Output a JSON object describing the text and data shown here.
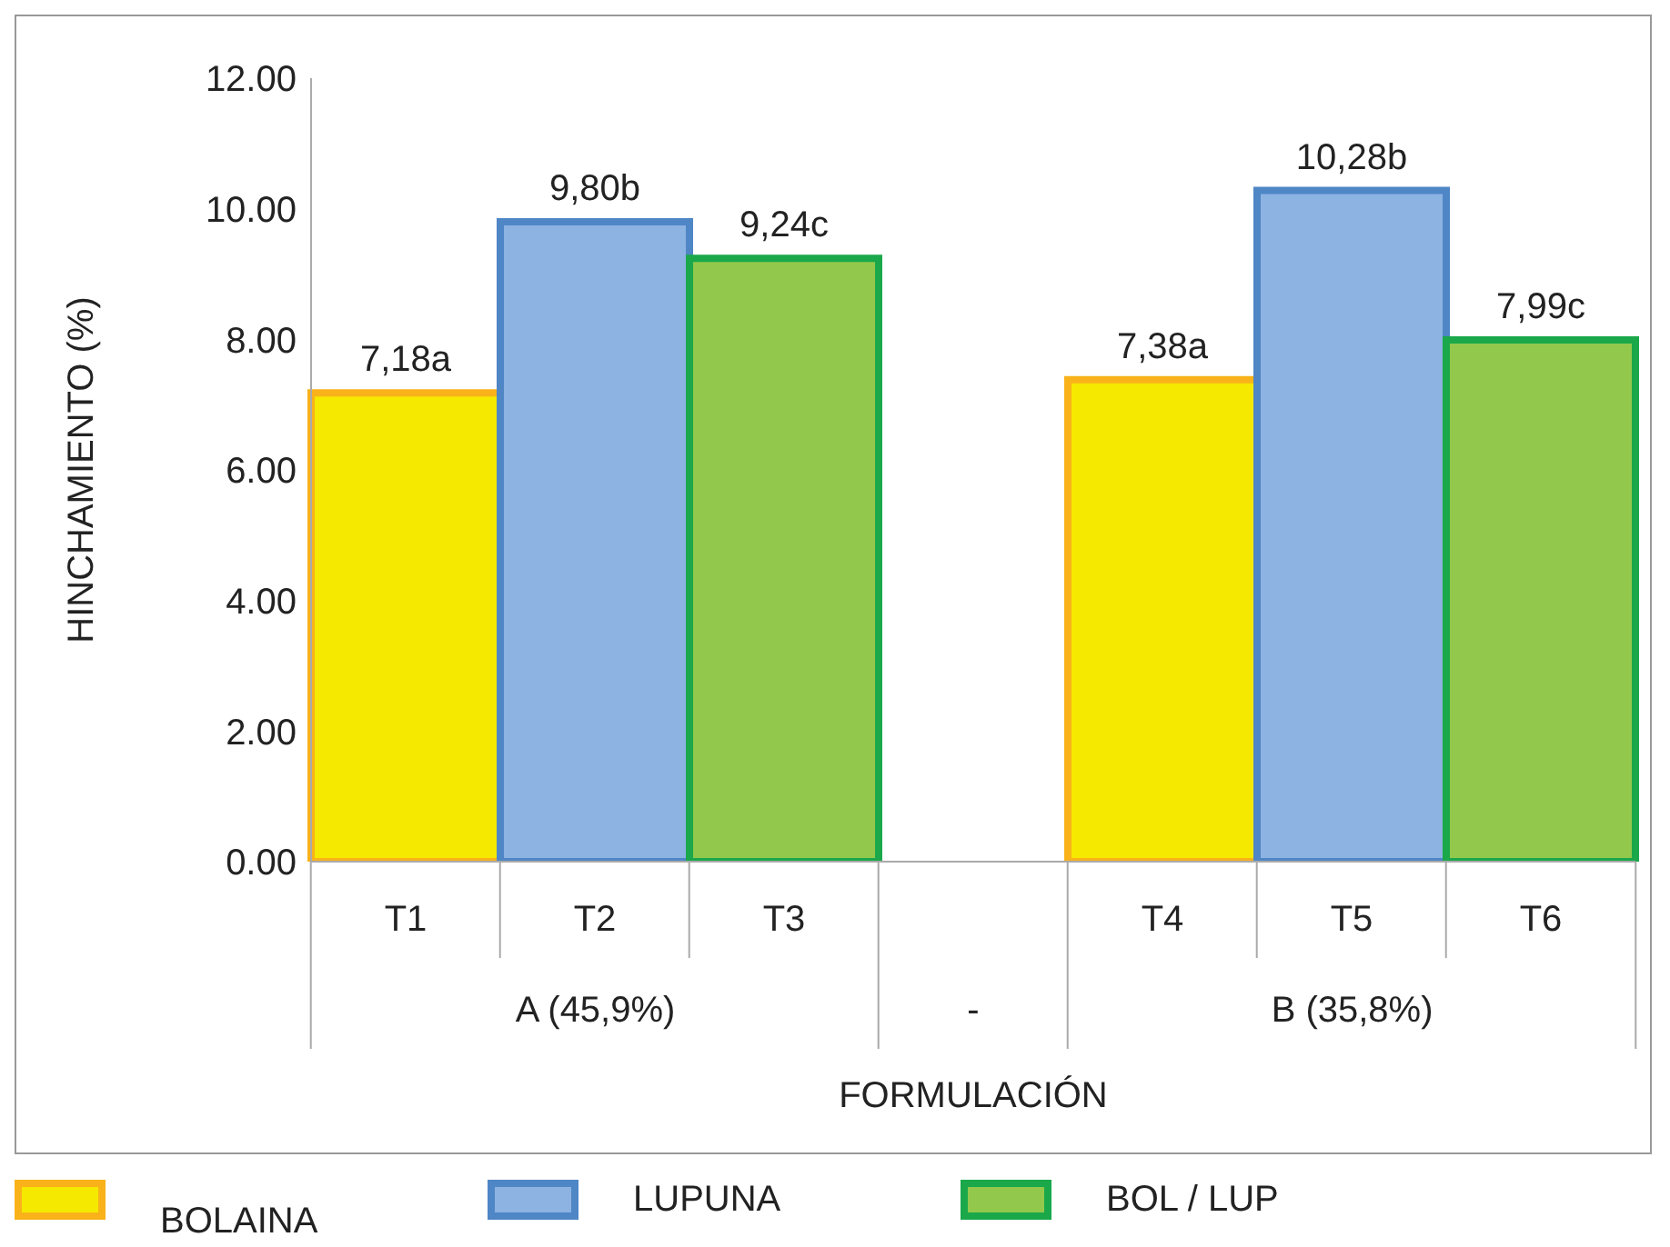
{
  "chart_data": {
    "type": "bar",
    "xlabel": "FORMULACIÓN",
    "ylabel": "HINCHAMIENTO (%)",
    "categories": [
      "T1",
      "T2",
      "T3",
      null,
      "T4",
      "T5",
      "T6"
    ],
    "annotations": [
      "A (45,9%)",
      "-",
      "B (35,8%)"
    ],
    "series": [
      {
        "name": "BOLAINA",
        "color": "#f5e900",
        "values": [
          7.18,
          null,
          null,
          null,
          7.38,
          null,
          null
        ],
        "value_labels": [
          "7,18a",
          null,
          null,
          null,
          "7,38a",
          null,
          null
        ]
      },
      {
        "name": "LUPUNA",
        "color": "#8db3e2",
        "values": [
          null,
          9.8,
          null,
          null,
          null,
          10.28,
          null
        ],
        "value_labels": [
          null,
          "9,80b",
          null,
          null,
          null,
          "10,28b",
          null
        ]
      },
      {
        "name": "BOL / LUP",
        "color": "#92c84c",
        "values": [
          null,
          null,
          9.24,
          null,
          null,
          null,
          7.99
        ],
        "value_labels": [
          null,
          null,
          "9,24c",
          null,
          null,
          null,
          "7,99c"
        ]
      }
    ],
    "ylim": [
      0,
      12
    ],
    "yticks": [
      {
        "value": 0,
        "label": "0.00"
      },
      {
        "value": 2,
        "label": "2.00"
      },
      {
        "value": 4,
        "label": "4.00"
      },
      {
        "value": 6,
        "label": "6.00"
      },
      {
        "value": 8,
        "label": "8.00"
      },
      {
        "value": 10,
        "label": "10.00"
      },
      {
        "value": 12,
        "label": "12.00"
      }
    ],
    "grid": false,
    "legend": "bottom"
  }
}
